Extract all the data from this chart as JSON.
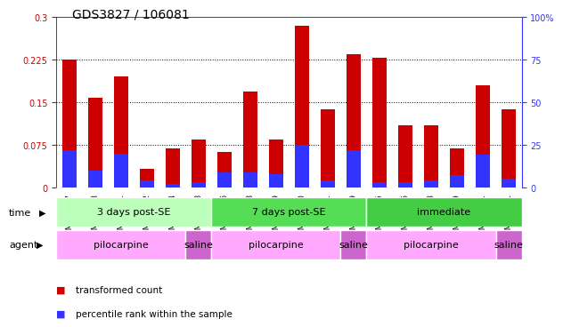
{
  "title": "GDS3827 / 106081",
  "samples": [
    "GSM367527",
    "GSM367528",
    "GSM367531",
    "GSM367532",
    "GSM367534",
    "GSM367718",
    "GSM367536",
    "GSM367538",
    "GSM367539",
    "GSM367540",
    "GSM367541",
    "GSM367719",
    "GSM367545",
    "GSM367546",
    "GSM367548",
    "GSM367549",
    "GSM367551",
    "GSM367721"
  ],
  "transformed_count": [
    0.225,
    0.158,
    0.195,
    0.032,
    0.068,
    0.085,
    0.063,
    0.168,
    0.085,
    0.285,
    0.138,
    0.235,
    0.228,
    0.11,
    0.11,
    0.068,
    0.18,
    0.138
  ],
  "percentile_rank_pct": [
    22,
    10,
    20,
    4,
    2,
    3,
    9,
    9,
    8,
    25,
    4,
    22,
    3,
    3,
    4,
    7,
    19,
    5
  ],
  "red_color": "#cc0000",
  "blue_color": "#3333ff",
  "bar_width": 0.55,
  "ylim_left": [
    0,
    0.3
  ],
  "ylim_right": [
    0,
    100
  ],
  "yticks_left": [
    0,
    0.075,
    0.15,
    0.225,
    0.3
  ],
  "yticks_right": [
    0,
    25,
    50,
    75,
    100
  ],
  "ytick_labels_left": [
    "0",
    "0.075",
    "0.15",
    "0.225",
    "0.3"
  ],
  "ytick_labels_right": [
    "0",
    "25",
    "50",
    "75",
    "100%"
  ],
  "hlines": [
    0.075,
    0.15,
    0.225
  ],
  "time_groups": [
    {
      "label": "3 days post-SE",
      "start": 0,
      "end": 6,
      "color": "#bbffbb"
    },
    {
      "label": "7 days post-SE",
      "start": 6,
      "end": 12,
      "color": "#55dd55"
    },
    {
      "label": "immediate",
      "start": 12,
      "end": 18,
      "color": "#44cc44"
    }
  ],
  "agent_groups": [
    {
      "label": "pilocarpine",
      "start": 0,
      "end": 5,
      "color": "#ffaaff"
    },
    {
      "label": "saline",
      "start": 5,
      "end": 6,
      "color": "#cc66cc"
    },
    {
      "label": "pilocarpine",
      "start": 6,
      "end": 11,
      "color": "#ffaaff"
    },
    {
      "label": "saline",
      "start": 11,
      "end": 12,
      "color": "#cc66cc"
    },
    {
      "label": "pilocarpine",
      "start": 12,
      "end": 17,
      "color": "#ffaaff"
    },
    {
      "label": "saline",
      "start": 17,
      "end": 18,
      "color": "#cc66cc"
    }
  ],
  "legend_items": [
    {
      "label": "transformed count",
      "color": "#cc0000"
    },
    {
      "label": "percentile rank within the sample",
      "color": "#3333ff"
    }
  ],
  "bg_color": "#ffffff",
  "title_fontsize": 10,
  "tick_fontsize": 7,
  "sample_fontsize": 6
}
